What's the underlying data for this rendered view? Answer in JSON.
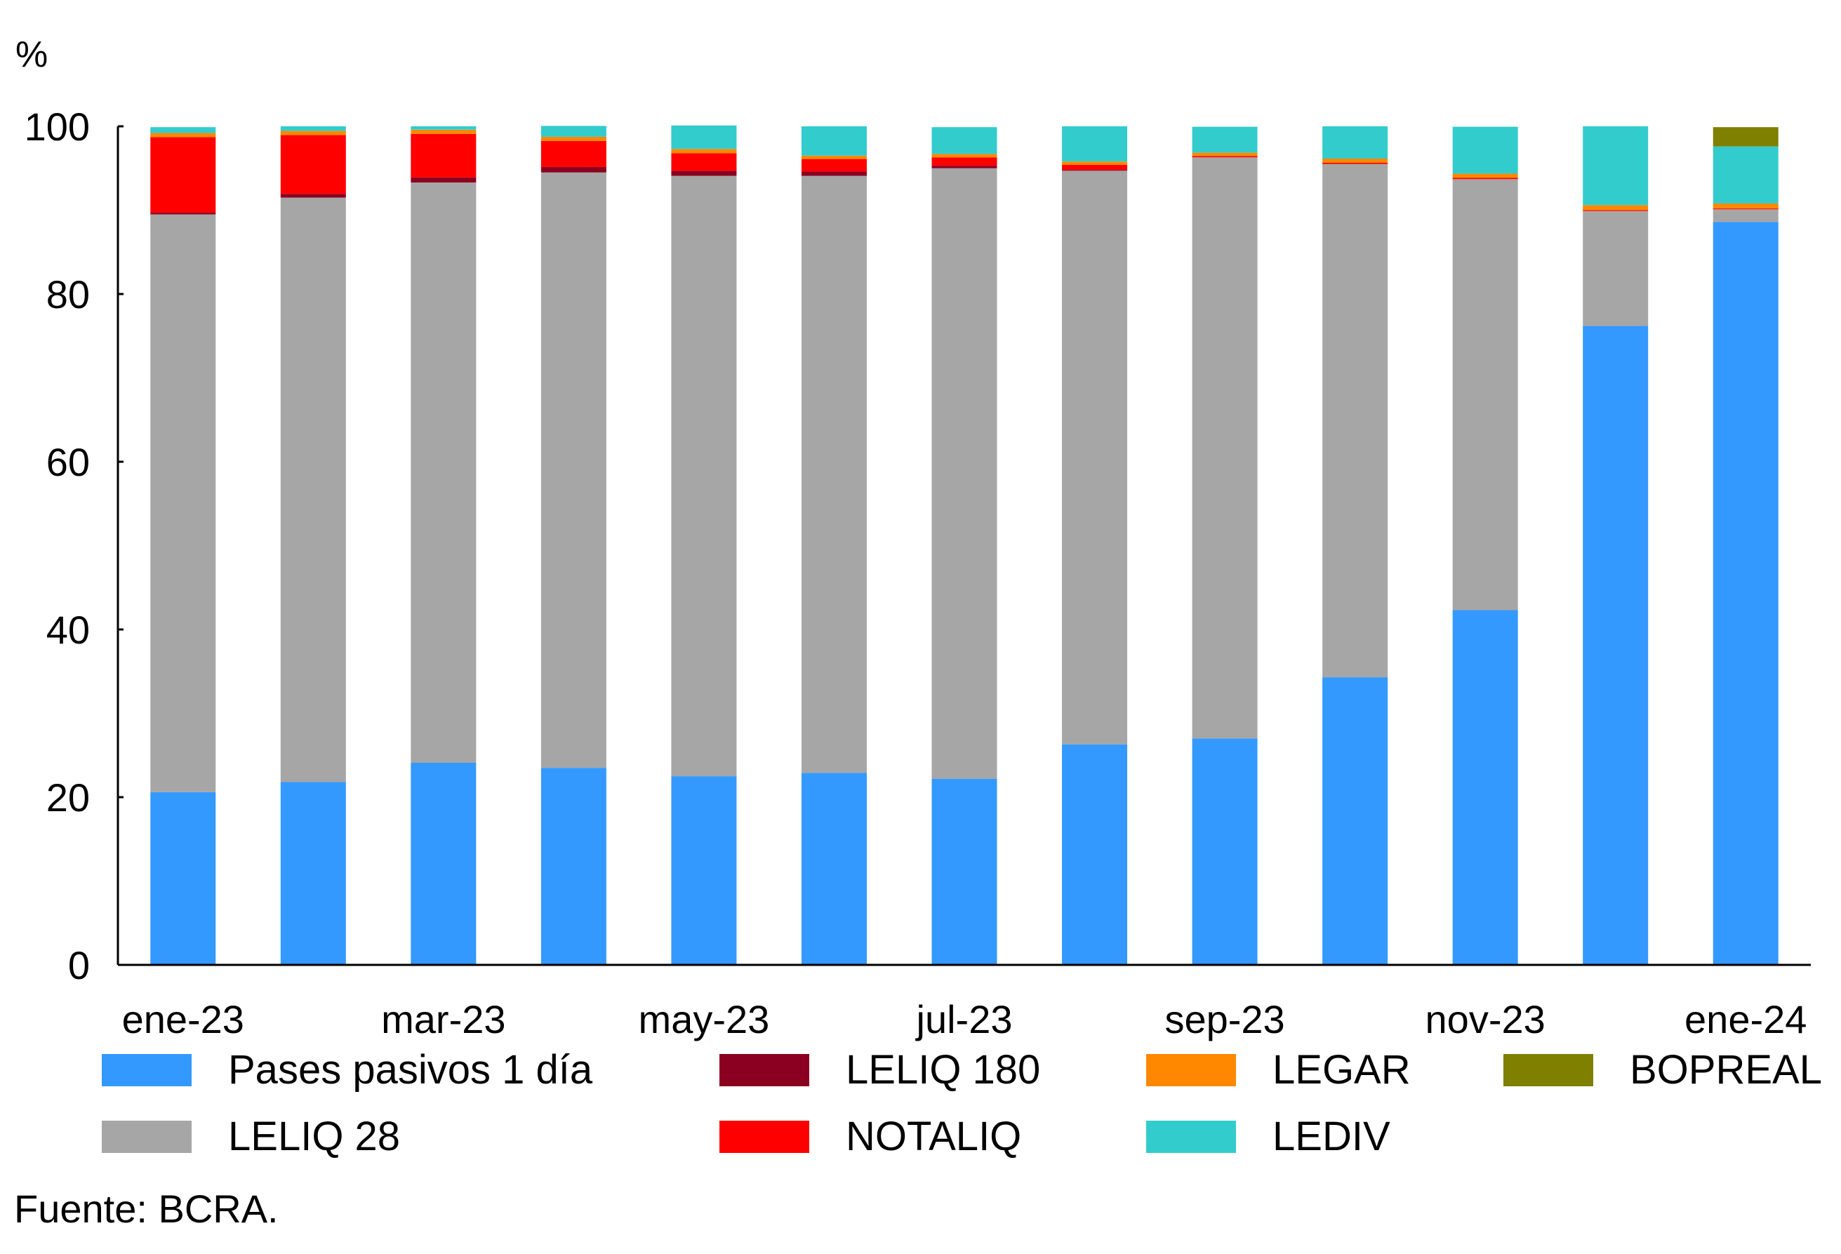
{
  "chart_data": {
    "type": "bar",
    "stacked": true,
    "title": "",
    "xlabel": "",
    "ylabel": "%",
    "ylim": [
      0,
      100
    ],
    "yticks": [
      0,
      20,
      40,
      60,
      80,
      100
    ],
    "grid": false,
    "legend_position": "bottom",
    "categories": [
      "ene-23",
      "feb-23",
      "mar-23",
      "abr-23",
      "may-23",
      "jun-23",
      "jul-23",
      "ago-23",
      "sep-23",
      "oct-23",
      "nov-23",
      "dic-23",
      "ene-24"
    ],
    "tick_labels": [
      "ene-23",
      "",
      "mar-23",
      "",
      "may-23",
      "",
      "jul-23",
      "",
      "sep-23",
      "",
      "nov-23",
      "",
      "ene-24"
    ],
    "series": [
      {
        "name": "Pases pasivos 1 día",
        "color": "#3399FF",
        "values": [
          20.6,
          21.8,
          24.1,
          23.5,
          22.5,
          22.9,
          22.2,
          26.3,
          27.0,
          34.3,
          42.3,
          76.2,
          88.6
        ]
      },
      {
        "name": "LELIQ 28",
        "color": "#A6A6A6",
        "values": [
          68.9,
          69.7,
          69.2,
          71.0,
          71.6,
          71.2,
          72.8,
          68.4,
          69.3,
          61.2,
          51.4,
          13.7,
          1.5
        ]
      },
      {
        "name": "LELIQ 180",
        "color": "#8B0020",
        "values": [
          0.2,
          0.45,
          0.6,
          0.65,
          0.6,
          0.5,
          0.3,
          0.1,
          0,
          0,
          0,
          0,
          0
        ]
      },
      {
        "name": "NOTALIQ",
        "color": "#FF0000",
        "values": [
          9.0,
          7.0,
          5.2,
          3.1,
          2.1,
          1.5,
          1.0,
          0.6,
          0.15,
          0.15,
          0.15,
          0.1,
          0.1
        ]
      },
      {
        "name": "LEGAR",
        "color": "#FF8800",
        "values": [
          0.5,
          0.5,
          0.5,
          0.5,
          0.5,
          0.4,
          0.4,
          0.4,
          0.4,
          0.5,
          0.5,
          0.6,
          0.6
        ]
      },
      {
        "name": "LEDIV",
        "color": "#33CCCC",
        "values": [
          0.7,
          0.55,
          0.4,
          1.3,
          2.8,
          3.5,
          3.2,
          4.2,
          3.1,
          3.85,
          5.6,
          9.4,
          6.8
        ]
      },
      {
        "name": "BOPREAL",
        "color": "#7F7F00",
        "values": [
          0,
          0,
          0,
          0,
          0,
          0,
          0,
          0,
          0,
          0,
          0,
          0,
          2.3
        ]
      }
    ]
  },
  "unit_label": "%",
  "source": "Fuente: BCRA.",
  "legend": [
    {
      "label": "Pases pasivos 1 día",
      "color": "#3399FF"
    },
    {
      "label": "LELIQ 28",
      "color": "#A6A6A6"
    },
    {
      "label": "LELIQ 180",
      "color": "#8B0020"
    },
    {
      "label": "NOTALIQ",
      "color": "#FF0000"
    },
    {
      "label": "LEGAR",
      "color": "#FF8800"
    },
    {
      "label": "LEDIV",
      "color": "#33CCCC"
    },
    {
      "label": "BOPREAL",
      "color": "#7F7F00"
    }
  ]
}
